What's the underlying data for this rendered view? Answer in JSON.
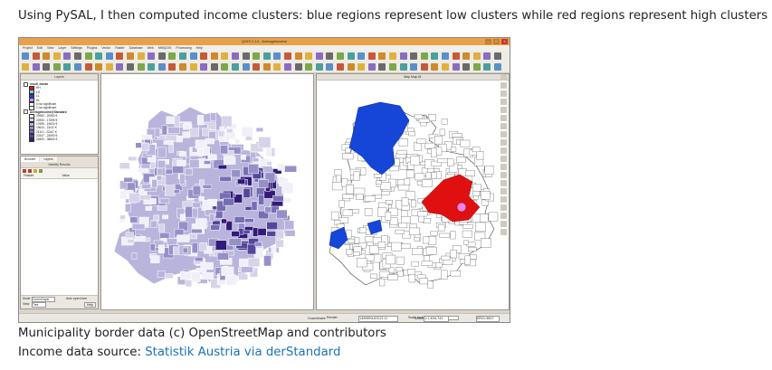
{
  "post": {
    "intro": "Using PySAL, I then computed income clusters: blue regions represent low clusters while red regions represent high clusters …",
    "credit_line": "Municipality border data (c) OpenStreetMap and contributors",
    "source_prefix": "Income data source: ",
    "source_link": "Statistik Austria via derStandard"
  },
  "window": {
    "title": "QGIS 2.14 - Averageincome",
    "menus": [
      "Project",
      "Edit",
      "View",
      "Layer",
      "Settings",
      "Plugins",
      "Vector",
      "Raster",
      "Database",
      "Web",
      "MMQGIS",
      "Processing",
      "Help"
    ]
  },
  "layers_panel": {
    "title": "Layers",
    "groups": [
      {
        "name": "result_moran",
        "items": [
          {
            "label": "HH",
            "color": "#e01010"
          },
          {
            "label": "LH",
            "color": "#7fc6ff"
          },
          {
            "label": "LL",
            "color": "#1546d8"
          },
          {
            "label": "HL",
            "color": "#ee82ee"
          },
          {
            "label": "0 not significant",
            "color": "#ffffff"
          },
          {
            "label": "1 not significant",
            "color": "#ffffff"
          }
        ]
      },
      {
        "name": "Averageincome@Standard",
        "items": [
          {
            "label": "20983 - 20953 €",
            "color": "#f1eff8"
          },
          {
            "label": "20953 - 17695 €",
            "color": "#d7d4ea"
          },
          {
            "label": "17695 - 19624 €",
            "color": "#b9b4db"
          },
          {
            "label": "19624 - 21112 €",
            "color": "#9690c8"
          },
          {
            "label": "21112 - 22447 €",
            "color": "#766db5"
          },
          {
            "label": "22447 - 24593 €",
            "color": "#53469b"
          },
          {
            "label": "24593 - 38804 €",
            "color": "#331a7a"
          }
        ]
      }
    ]
  },
  "identify_panel": {
    "tabs": [
      "Browser",
      "Layers"
    ],
    "title": "Identify Results",
    "columns": [
      "Feature",
      "Value"
    ],
    "mode_label": "Mode",
    "mode_value": "Current layer",
    "auto_open_label": "Auto open form",
    "view_label": "View",
    "view_value": "Tree",
    "help_label": "Help"
  },
  "right_map": {
    "title": "Map Map #1"
  },
  "statusbar": {
    "render_label": "Render",
    "scale_factor_label": "Scale factor",
    "scale_factor_value": "1.000",
    "coordinate_label": "Coordinate",
    "coordinate_value": "1465694,6322111",
    "scale_label": "Scale",
    "scale_value": "1:1,634,741",
    "epsg_label": "EPSG:3857"
  },
  "colors": {
    "low_cluster": "#1546d8",
    "high_cluster": "#e01010",
    "hl_cluster": "#ee82ee",
    "window_titlebar": "#e8a14a"
  }
}
